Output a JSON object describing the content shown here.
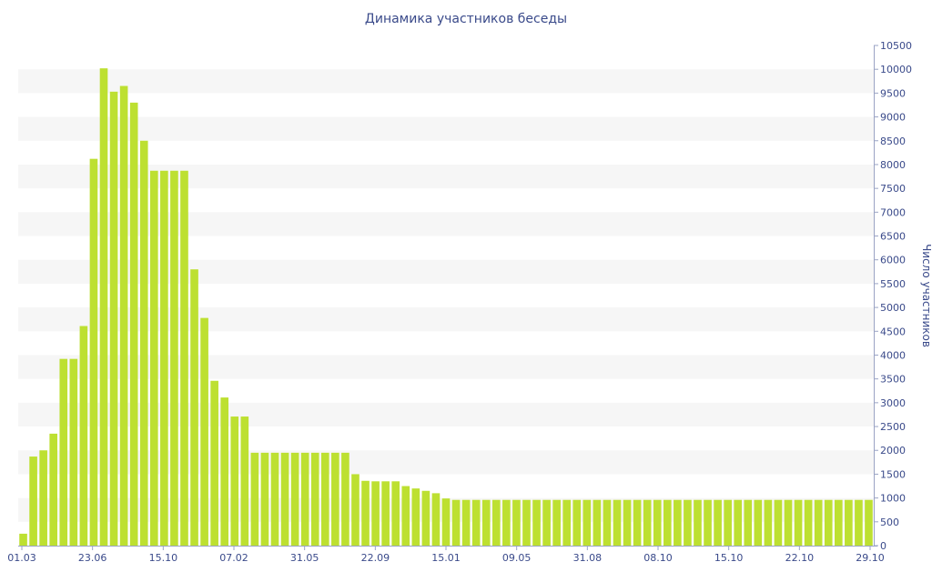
{
  "chart_data": {
    "type": "bar",
    "title": "Динамика участников беседы",
    "xlabel": "",
    "ylabel": "Число участников",
    "y_axis_side": "right",
    "grid": "horizontal alternating bands",
    "ylim": [
      0,
      10500
    ],
    "y_ticks": [
      0,
      500,
      1000,
      1500,
      2000,
      2500,
      3000,
      3500,
      4000,
      4500,
      5000,
      5500,
      6000,
      6500,
      7000,
      7500,
      8000,
      8500,
      9000,
      9500,
      10000,
      10500
    ],
    "x_tick_labels": [
      "01.03",
      "23.06",
      "15.10",
      "07.02",
      "31.05",
      "22.09",
      "15.01",
      "09.05",
      "31.08",
      "08.10",
      "15.10",
      "22.10",
      "29.10"
    ],
    "bar_color": "#bde031",
    "band_color": "#f6f6f6",
    "text_color": "#3a4a8a",
    "values": [
      250,
      1870,
      2000,
      2350,
      3920,
      3920,
      4610,
      8120,
      10020,
      9530,
      9650,
      9300,
      8500,
      7870,
      7870,
      7870,
      7870,
      5800,
      4780,
      3460,
      3110,
      2710,
      2710,
      1950,
      1950,
      1950,
      1950,
      1950,
      1950,
      1950,
      1950,
      1950,
      1950,
      1500,
      1360,
      1350,
      1350,
      1350,
      1250,
      1200,
      1150,
      1100,
      990,
      960,
      960,
      960,
      960,
      960,
      960,
      960,
      960,
      960,
      960,
      960,
      960,
      960,
      960,
      960,
      960,
      960,
      960,
      960,
      960,
      960,
      960,
      960,
      960,
      960,
      960,
      960,
      960,
      960,
      960,
      960,
      960,
      960,
      960,
      960,
      960,
      960,
      960,
      960,
      960,
      960,
      960
    ]
  }
}
